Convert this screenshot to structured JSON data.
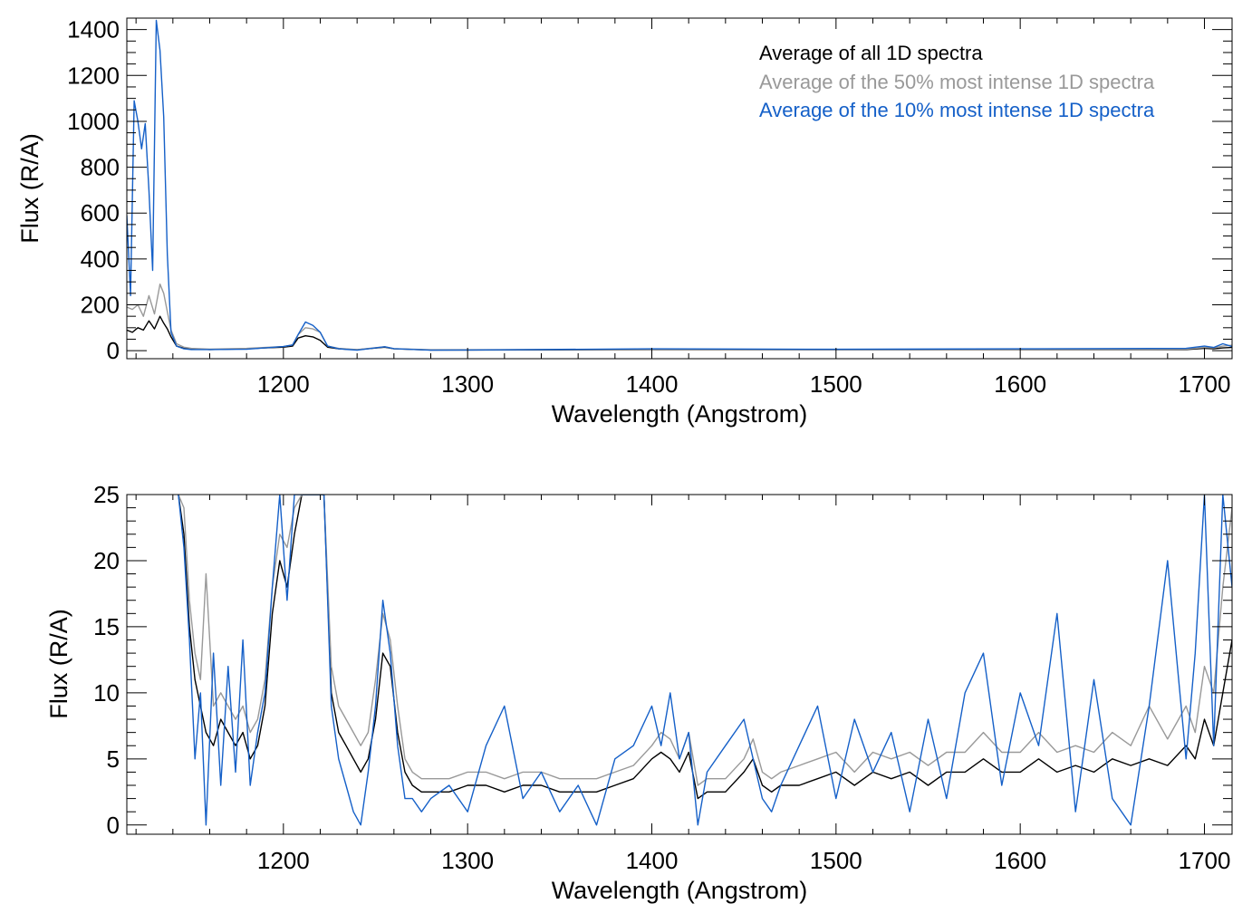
{
  "colors": {
    "all": "#000000",
    "p50": "#999999",
    "p10": "#1560c8"
  },
  "chart_data": [
    {
      "type": "line",
      "title": "",
      "xlabel": "Wavelength (Angstrom)",
      "ylabel": "Flux (R/A)",
      "xlim": [
        1115,
        1715
      ],
      "ylim": [
        -35,
        1450
      ],
      "xticks": [
        1200,
        1300,
        1400,
        1500,
        1600,
        1700
      ],
      "xtick_labels": [
        "1200",
        "1300",
        "1400",
        "1500",
        "1600",
        "1700"
      ],
      "yticks": [
        0,
        200,
        400,
        600,
        800,
        1000,
        1200,
        1400
      ],
      "ytick_labels": [
        "0",
        "200",
        "400",
        "600",
        "800",
        "1000",
        "1200",
        "1400"
      ],
      "legend": {
        "placement": "top-right",
        "entries": [
          "Average of all 1D spectra",
          "Average of the 50% most intense 1D spectra",
          "Average of the 10% most intense 1D spectra"
        ]
      },
      "series": [
        {
          "name": "Average of all 1D spectra",
          "x": [
            1115,
            1118,
            1121,
            1124,
            1127,
            1130,
            1133,
            1135,
            1137,
            1139,
            1142,
            1146,
            1150,
            1160,
            1180,
            1190,
            1200,
            1205,
            1208,
            1212,
            1216,
            1220,
            1224,
            1230,
            1240,
            1255,
            1260,
            1280,
            1300,
            1400,
            1500,
            1600,
            1690,
            1700,
            1705,
            1710,
            1715
          ],
          "y": [
            90,
            80,
            100,
            90,
            130,
            95,
            150,
            120,
            95,
            60,
            20,
            10,
            8,
            5,
            8,
            12,
            15,
            20,
            55,
            65,
            60,
            45,
            15,
            8,
            4,
            15,
            8,
            3,
            3,
            4,
            4,
            4,
            5,
            10,
            8,
            12,
            14
          ]
        },
        {
          "name": "Average of the 50% most intense 1D spectra",
          "x": [
            1115,
            1118,
            1121,
            1124,
            1127,
            1130,
            1133,
            1135,
            1137,
            1139,
            1142,
            1146,
            1150,
            1160,
            1180,
            1190,
            1200,
            1205,
            1208,
            1212,
            1216,
            1220,
            1224,
            1230,
            1240,
            1255,
            1260,
            1280,
            1300,
            1400,
            1500,
            1600,
            1690,
            1700,
            1705,
            1710,
            1715
          ],
          "y": [
            190,
            180,
            200,
            150,
            240,
            160,
            290,
            250,
            170,
            90,
            30,
            15,
            10,
            7,
            10,
            14,
            18,
            25,
            70,
            100,
            95,
            80,
            20,
            10,
            5,
            17,
            9,
            4,
            4,
            5,
            5,
            5,
            7,
            14,
            12,
            20,
            24
          ]
        },
        {
          "name": "Average of the 10% most intense 1D spectra",
          "x": [
            1115,
            1117,
            1119,
            1121,
            1123,
            1125,
            1127,
            1129,
            1131,
            1133,
            1135,
            1137,
            1139,
            1142,
            1146,
            1150,
            1160,
            1180,
            1190,
            1200,
            1205,
            1208,
            1212,
            1216,
            1220,
            1224,
            1230,
            1240,
            1255,
            1260,
            1280,
            1300,
            1400,
            1500,
            1600,
            1690,
            1700,
            1705,
            1710,
            1715
          ],
          "y": [
            590,
            240,
            1090,
            1000,
            880,
            990,
            700,
            350,
            1440,
            1310,
            1020,
            420,
            80,
            20,
            8,
            5,
            5,
            6,
            12,
            18,
            25,
            70,
            125,
            110,
            80,
            20,
            8,
            2,
            17,
            9,
            2,
            3,
            8,
            6,
            8,
            10,
            20,
            14,
            30,
            18
          ]
        }
      ]
    },
    {
      "type": "line",
      "title": "",
      "xlabel": "Wavelength (Angstrom)",
      "ylabel": "Flux (R/A)",
      "xlim": [
        1115,
        1715
      ],
      "ylim": [
        -0.7,
        25
      ],
      "xticks": [
        1200,
        1300,
        1400,
        1500,
        1600,
        1700
      ],
      "xtick_labels": [
        "1200",
        "1300",
        "1400",
        "1500",
        "1600",
        "1700"
      ],
      "yticks": [
        0,
        5,
        10,
        15,
        20,
        25
      ],
      "ytick_labels": [
        "0",
        "5",
        "10",
        "15",
        "20",
        "25"
      ],
      "series": [
        {
          "name": "Average of all 1D spectra",
          "x": [
            1143,
            1146,
            1149,
            1152,
            1155,
            1158,
            1162,
            1166,
            1170,
            1174,
            1178,
            1182,
            1186,
            1190,
            1194,
            1198,
            1202,
            1206,
            1210,
            1214,
            1218,
            1222,
            1226,
            1230,
            1234,
            1238,
            1242,
            1246,
            1250,
            1254,
            1258,
            1262,
            1266,
            1270,
            1275,
            1280,
            1290,
            1300,
            1310,
            1320,
            1330,
            1340,
            1350,
            1360,
            1370,
            1380,
            1390,
            1400,
            1405,
            1410,
            1415,
            1420,
            1425,
            1430,
            1440,
            1450,
            1455,
            1460,
            1465,
            1470,
            1480,
            1490,
            1500,
            1510,
            1520,
            1530,
            1540,
            1550,
            1560,
            1570,
            1580,
            1590,
            1600,
            1610,
            1620,
            1630,
            1640,
            1650,
            1660,
            1670,
            1680,
            1690,
            1695,
            1700,
            1705,
            1710,
            1715
          ],
          "y": [
            25,
            22,
            15,
            11,
            9,
            7,
            6,
            8,
            7,
            6,
            7,
            5,
            6,
            9,
            16,
            20,
            18,
            22,
            25,
            25,
            25,
            25,
            10,
            7,
            6,
            5,
            4,
            5,
            8,
            13,
            12,
            7,
            4,
            3,
            2.5,
            2.5,
            2.5,
            3,
            3,
            2.5,
            3,
            3,
            2.5,
            2.5,
            2.5,
            3,
            3.5,
            5,
            5.5,
            5,
            4,
            5.5,
            2,
            2.5,
            2.5,
            4,
            5,
            3,
            2.5,
            3,
            3,
            3.5,
            4,
            3,
            4,
            3.5,
            4,
            3,
            4,
            4,
            5,
            4,
            4,
            5,
            4,
            4.5,
            4,
            5,
            4.5,
            5,
            4.5,
            6,
            5,
            8,
            6,
            10,
            14
          ]
        },
        {
          "name": "Average of the 50% most intense 1D spectra",
          "x": [
            1143,
            1146,
            1149,
            1152,
            1155,
            1158,
            1162,
            1166,
            1170,
            1174,
            1178,
            1182,
            1186,
            1190,
            1194,
            1198,
            1202,
            1206,
            1210,
            1214,
            1218,
            1222,
            1226,
            1230,
            1234,
            1238,
            1242,
            1246,
            1250,
            1254,
            1258,
            1262,
            1266,
            1270,
            1275,
            1280,
            1290,
            1300,
            1310,
            1320,
            1330,
            1340,
            1350,
            1360,
            1370,
            1380,
            1390,
            1400,
            1405,
            1410,
            1415,
            1420,
            1425,
            1430,
            1440,
            1450,
            1455,
            1460,
            1465,
            1470,
            1480,
            1490,
            1500,
            1510,
            1520,
            1530,
            1540,
            1550,
            1560,
            1570,
            1580,
            1590,
            1600,
            1610,
            1620,
            1630,
            1640,
            1650,
            1660,
            1670,
            1680,
            1690,
            1695,
            1700,
            1705,
            1710,
            1715
          ],
          "y": [
            25,
            24,
            17,
            13,
            11,
            19,
            9,
            10,
            9,
            8,
            9,
            7,
            8,
            11,
            18,
            22,
            21,
            24,
            25,
            25,
            25,
            25,
            12,
            9,
            8,
            7,
            6,
            7,
            11,
            16,
            14,
            9,
            5,
            4,
            3.5,
            3.5,
            3.5,
            4,
            4,
            3.5,
            4,
            4,
            3.5,
            3.5,
            3.5,
            4,
            4.5,
            6,
            7,
            6.5,
            5,
            7,
            3,
            3.5,
            3.5,
            5,
            6.5,
            4,
            3.5,
            4,
            4.5,
            5,
            5.5,
            4,
            5.5,
            5,
            5.5,
            4.5,
            5.5,
            5.5,
            7,
            5.5,
            5.5,
            7,
            5.5,
            6,
            5.5,
            7,
            6,
            9,
            6.5,
            9,
            7,
            12,
            10,
            18,
            24
          ]
        },
        {
          "name": "Average of the 10% most intense 1D spectra",
          "x": [
            1143,
            1146,
            1149,
            1152,
            1155,
            1158,
            1162,
            1166,
            1170,
            1174,
            1178,
            1182,
            1186,
            1190,
            1194,
            1198,
            1202,
            1206,
            1210,
            1214,
            1218,
            1222,
            1226,
            1230,
            1234,
            1238,
            1242,
            1246,
            1250,
            1254,
            1258,
            1262,
            1266,
            1270,
            1275,
            1280,
            1290,
            1300,
            1310,
            1320,
            1330,
            1340,
            1350,
            1360,
            1370,
            1380,
            1390,
            1400,
            1405,
            1410,
            1415,
            1420,
            1425,
            1430,
            1440,
            1450,
            1455,
            1460,
            1465,
            1470,
            1480,
            1490,
            1500,
            1510,
            1520,
            1530,
            1540,
            1550,
            1560,
            1570,
            1580,
            1590,
            1600,
            1610,
            1620,
            1630,
            1640,
            1650,
            1660,
            1670,
            1680,
            1690,
            1695,
            1700,
            1705,
            1710,
            1715
          ],
          "y": [
            25,
            21,
            14,
            5,
            10,
            0,
            13,
            3,
            12,
            4,
            14,
            3,
            7,
            10,
            18,
            25,
            17,
            25,
            25,
            25,
            25,
            25,
            9,
            5,
            3,
            1,
            0,
            4,
            9,
            17,
            13,
            6,
            2,
            2,
            1,
            2,
            3,
            1,
            6,
            9,
            2,
            4,
            1,
            3,
            0,
            5,
            6,
            9,
            6,
            10,
            5,
            7,
            0,
            4,
            6,
            8,
            5,
            2,
            1,
            3,
            6,
            9,
            2,
            8,
            4,
            7,
            1,
            8,
            2,
            10,
            13,
            3,
            10,
            6,
            16,
            1,
            11,
            2,
            0,
            9,
            20,
            5,
            13,
            25,
            6,
            25,
            18
          ]
        }
      ]
    }
  ]
}
